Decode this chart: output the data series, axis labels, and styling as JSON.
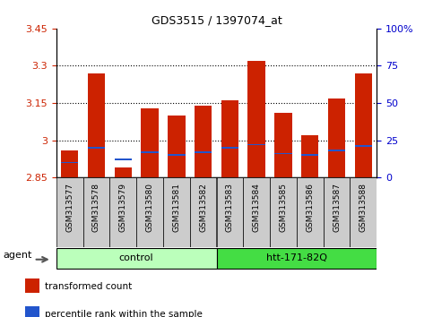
{
  "title": "GDS3515 / 1397074_at",
  "samples": [
    "GSM313577",
    "GSM313578",
    "GSM313579",
    "GSM313580",
    "GSM313581",
    "GSM313582",
    "GSM313583",
    "GSM313584",
    "GSM313585",
    "GSM313586",
    "GSM313587",
    "GSM313588"
  ],
  "transformed_counts": [
    2.96,
    3.27,
    2.89,
    3.13,
    3.1,
    3.14,
    3.16,
    3.32,
    3.11,
    3.02,
    3.17,
    3.27
  ],
  "percentile_ranks": [
    10,
    20,
    12,
    17,
    15,
    17,
    20,
    22,
    16,
    15,
    18,
    21
  ],
  "bar_bottom": 2.85,
  "ymin": 2.85,
  "ymax": 3.45,
  "yticks": [
    2.85,
    3.0,
    3.15,
    3.3,
    3.45
  ],
  "ytick_labels": [
    "2.85",
    "3",
    "3.15",
    "3.3",
    "3.45"
  ],
  "y2min": 0,
  "y2max": 100,
  "y2ticks": [
    0,
    25,
    50,
    75,
    100
  ],
  "y2tick_labels": [
    "0",
    "25",
    "50",
    "75",
    "100%"
  ],
  "groups": [
    {
      "label": "control",
      "start": 0,
      "end": 6,
      "color": "#bbffbb"
    },
    {
      "label": "htt-171-82Q",
      "start": 6,
      "end": 12,
      "color": "#44dd44"
    }
  ],
  "bar_color": "#cc2200",
  "percentile_color": "#2255cc",
  "agent_label": "agent",
  "legend_items": [
    {
      "color": "#cc2200",
      "label": "transformed count"
    },
    {
      "color": "#2255cc",
      "label": "percentile rank within the sample"
    }
  ],
  "bg_color": "#ffffff",
  "tick_bg_color": "#cccccc",
  "tick_label_color_left": "#cc2200",
  "tick_label_color_right": "#0000cc",
  "grid_yticks": [
    3.0,
    3.15,
    3.3
  ]
}
